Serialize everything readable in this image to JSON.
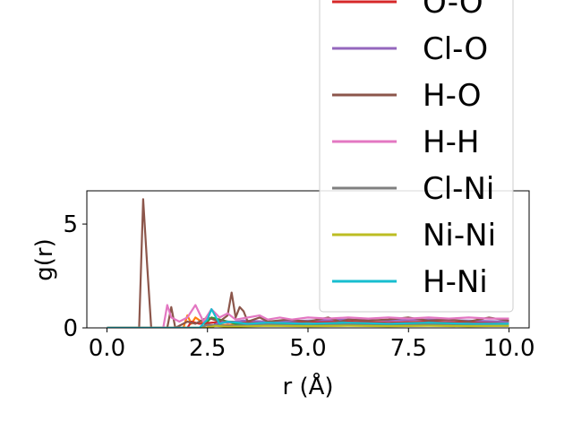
{
  "chart_data": {
    "type": "line",
    "title": "",
    "xlabel": "r (Å)",
    "ylabel": "g(r)",
    "xlim": [
      -0.5,
      10.5
    ],
    "ylim": [
      0,
      6.6
    ],
    "xticks": [
      0.0,
      2.5,
      5.0,
      7.5,
      10.0
    ],
    "xtick_labels": [
      "0.0",
      "2.5",
      "5.0",
      "7.5",
      "10.0"
    ],
    "yticks": [
      0,
      5
    ],
    "ytick_labels": [
      "0",
      "5"
    ],
    "grid": false,
    "legend_placement": "upper-right (extends beyond plot)",
    "series": [
      {
        "name": "O-O",
        "color": "#d62728",
        "x": [
          0,
          2.0,
          2.1,
          2.3,
          2.6,
          3.0,
          4.0,
          5.0,
          6.0,
          7.0,
          8.0,
          9.0,
          10.0
        ],
        "y": [
          0,
          0,
          0.3,
          0.2,
          0.25,
          0.3,
          0.25,
          0.3,
          0.3,
          0.25,
          0.3,
          0.25,
          0.3
        ]
      },
      {
        "name": "Cl-O",
        "color": "#9467bd",
        "x": [
          0,
          2.6,
          2.8,
          3.0,
          3.4,
          4.0,
          5.0,
          6.0,
          7.0,
          8.0,
          9.0,
          10.0
        ],
        "y": [
          0,
          0,
          0.3,
          0.25,
          0.35,
          0.3,
          0.35,
          0.4,
          0.35,
          0.4,
          0.35,
          0.3
        ]
      },
      {
        "name": "H-O",
        "color": "#8c564b",
        "x": [
          0,
          0.8,
          0.9,
          1.0,
          1.1,
          1.5,
          1.6,
          1.7,
          2.0,
          2.2,
          2.5,
          2.8,
          3.0,
          3.1,
          3.2,
          3.3,
          3.4,
          3.5,
          3.8,
          4.0,
          4.5,
          5.0,
          5.5,
          5.8,
          6.0,
          6.5,
          7.0,
          7.5,
          8.0,
          8.5,
          9.0,
          9.5,
          10.0
        ],
        "y": [
          0,
          0,
          6.2,
          3.0,
          0,
          0,
          1.0,
          0,
          0.3,
          0.2,
          0.5,
          0.3,
          0.6,
          1.7,
          0.5,
          1.0,
          0.8,
          0.3,
          0.5,
          0.3,
          0.4,
          0.3,
          0.5,
          0.3,
          0.4,
          0.35,
          0.4,
          0.5,
          0.35,
          0.4,
          0.3,
          0.5,
          0.35
        ]
      },
      {
        "name": "H-H",
        "color": "#e377c2",
        "x": [
          0,
          1.4,
          1.5,
          1.6,
          1.8,
          2.0,
          2.2,
          2.4,
          2.6,
          2.8,
          3.0,
          3.2,
          3.5,
          3.8,
          4.0,
          4.3,
          4.6,
          5.0,
          5.5,
          6.0,
          6.5,
          7.0,
          7.5,
          8.0,
          8.5,
          9.0,
          9.5,
          10.0
        ],
        "y": [
          0,
          0,
          1.1,
          0.5,
          0.3,
          0.5,
          1.1,
          0.3,
          0.9,
          0.5,
          0.7,
          0.4,
          0.5,
          0.6,
          0.4,
          0.5,
          0.4,
          0.5,
          0.45,
          0.5,
          0.45,
          0.5,
          0.45,
          0.5,
          0.45,
          0.5,
          0.45,
          0.45
        ]
      },
      {
        "name": "Cl-Ni",
        "color": "#7f7f7f",
        "x": [
          0,
          2.3,
          2.5,
          3.0,
          4.0,
          5.0,
          6.0,
          7.0,
          8.0,
          9.0,
          10.0
        ],
        "y": [
          0,
          0,
          0.15,
          0.1,
          0.15,
          0.1,
          0.15,
          0.1,
          0.15,
          0.1,
          0.12
        ]
      },
      {
        "name": "Ni-Ni",
        "color": "#bcbd22",
        "x": [
          0,
          2.5,
          2.7,
          3.0,
          4.0,
          5.0,
          6.0,
          7.0,
          8.0,
          9.0,
          10.0
        ],
        "y": [
          0,
          0,
          0.1,
          0.05,
          0.1,
          0.08,
          0.1,
          0.08,
          0.1,
          0.08,
          0.1
        ]
      },
      {
        "name": "H-Ni",
        "color": "#17becf",
        "x": [
          0,
          2.3,
          2.5,
          2.6,
          2.8,
          3.0,
          3.5,
          4.0,
          5.0,
          6.0,
          7.0,
          8.0,
          9.0,
          10.0
        ],
        "y": [
          0,
          0,
          0.4,
          0.9,
          0.2,
          0.3,
          0.2,
          0.25,
          0.2,
          0.25,
          0.2,
          0.25,
          0.2,
          0.2
        ]
      }
    ],
    "extra_series_colors": [
      {
        "color": "#1f77b4",
        "x": [
          0,
          2.6,
          2.7,
          2.9,
          3.5,
          5.0,
          7.0,
          10.0
        ],
        "y": [
          0,
          0,
          0.2,
          0.1,
          0.15,
          0.1,
          0.15,
          0.1
        ]
      },
      {
        "color": "#ff7f0e",
        "x": [
          0,
          1.9,
          2.0,
          2.1,
          2.2,
          2.5,
          3.0,
          5.0,
          7.0,
          10.0
        ],
        "y": [
          0,
          0,
          0.6,
          0.2,
          0.5,
          0.1,
          0.15,
          0.1,
          0.15,
          0.1
        ]
      },
      {
        "color": "#2ca02c",
        "x": [
          0,
          2.4,
          2.5,
          2.6,
          3.0,
          3.2,
          5.0,
          7.0,
          10.0
        ],
        "y": [
          0,
          0,
          0.3,
          0.5,
          0.3,
          0.2,
          0.2,
          0.15,
          0.2
        ]
      }
    ]
  }
}
